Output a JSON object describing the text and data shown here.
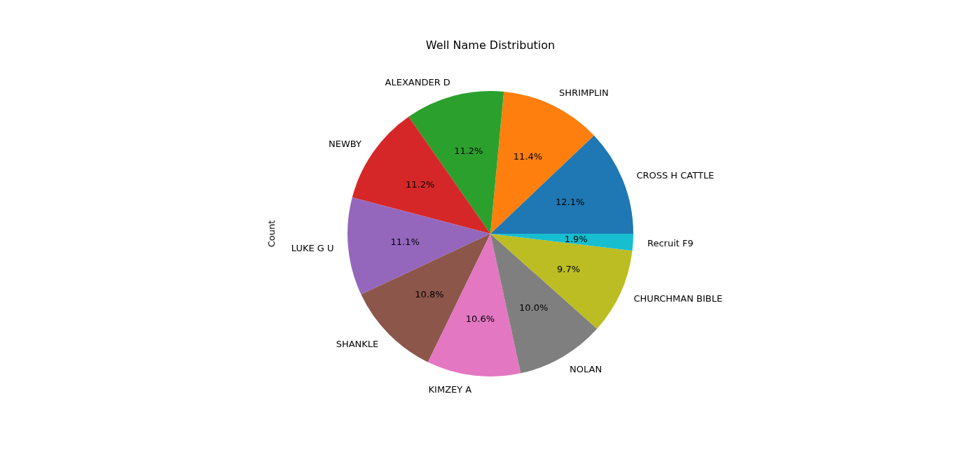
{
  "chart_data": {
    "type": "pie",
    "title": "Well Name Distribution",
    "ylabel": "Count",
    "categories": [
      "CROSS H CATTLE",
      "SHRIMPLIN",
      "ALEXANDER D",
      "NEWBY",
      "LUKE G U",
      "SHANKLE",
      "KIMZEY A",
      "NOLAN",
      "CHURCHMAN BIBLE",
      "Recruit F9"
    ],
    "values": [
      12.1,
      11.4,
      11.2,
      11.2,
      11.1,
      10.8,
      10.6,
      10.0,
      9.7,
      1.9
    ],
    "value_labels": [
      "12.1%",
      "11.4%",
      "11.2%",
      "11.2%",
      "11.1%",
      "10.8%",
      "10.6%",
      "10.0%",
      "9.7%",
      "1.9%"
    ],
    "colors": [
      "#1f77b4",
      "#ff7f0e",
      "#2ca02c",
      "#d62728",
      "#9467bd",
      "#8c564b",
      "#e377c2",
      "#7f7f7f",
      "#bcbd22",
      "#17becf"
    ]
  }
}
